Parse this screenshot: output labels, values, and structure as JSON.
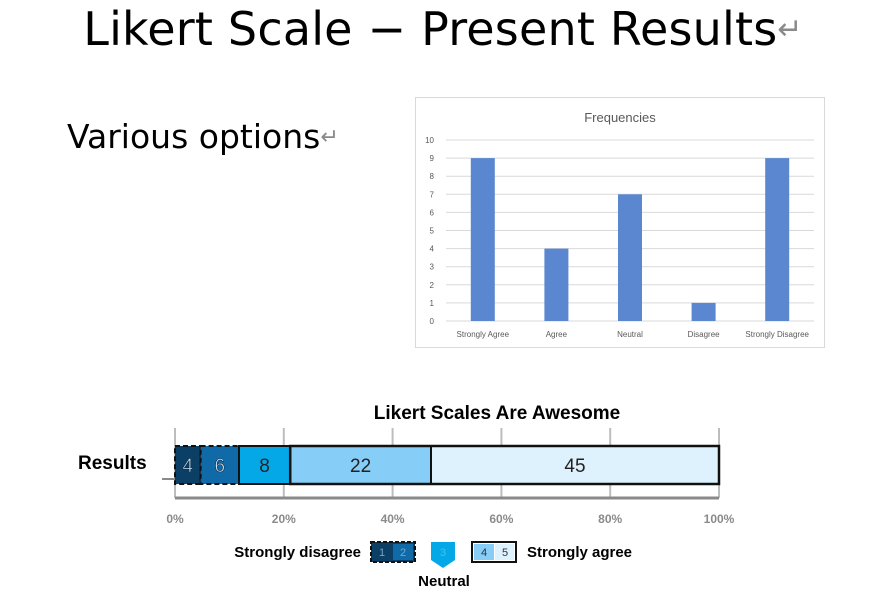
{
  "slide": {
    "title": "Likert Scale − Present Results",
    "bullet": "Various options"
  },
  "chart_data": [
    {
      "type": "bar",
      "title": "Frequencies",
      "categories": [
        "Strongly Agree",
        "Agree",
        "Neutral",
        "Disagree",
        "Strongly Disagree"
      ],
      "values": [
        9,
        4,
        7,
        1,
        9
      ],
      "ylim": [
        0,
        10
      ],
      "yticks": [
        0,
        1,
        2,
        3,
        4,
        5,
        6,
        7,
        8,
        9,
        10
      ],
      "grid": true,
      "bar_color": "#5b87d1"
    },
    {
      "type": "bar",
      "orientation": "horizontal-stacked",
      "title": "Likert Scales Are Awesome",
      "category": "Results",
      "series": [
        {
          "name": "1",
          "value": 4,
          "color": "#0b3f66"
        },
        {
          "name": "2",
          "value": 6,
          "color": "#106aa8"
        },
        {
          "name": "3",
          "value": 8,
          "color": "#05a8e6"
        },
        {
          "name": "4",
          "value": 22,
          "color": "#86cdf7"
        },
        {
          "name": "5",
          "value": 45,
          "color": "#def2fd"
        }
      ],
      "xlim": [
        0,
        100
      ],
      "xticks": [
        "0%",
        "20%",
        "40%",
        "60%",
        "80%",
        "100%"
      ],
      "legend": {
        "left_label": "Strongly disagree",
        "middle_label": "Neutral",
        "right_label": "Strongly agree",
        "keys": [
          "1",
          "2",
          "3",
          "4",
          "5"
        ]
      }
    }
  ]
}
